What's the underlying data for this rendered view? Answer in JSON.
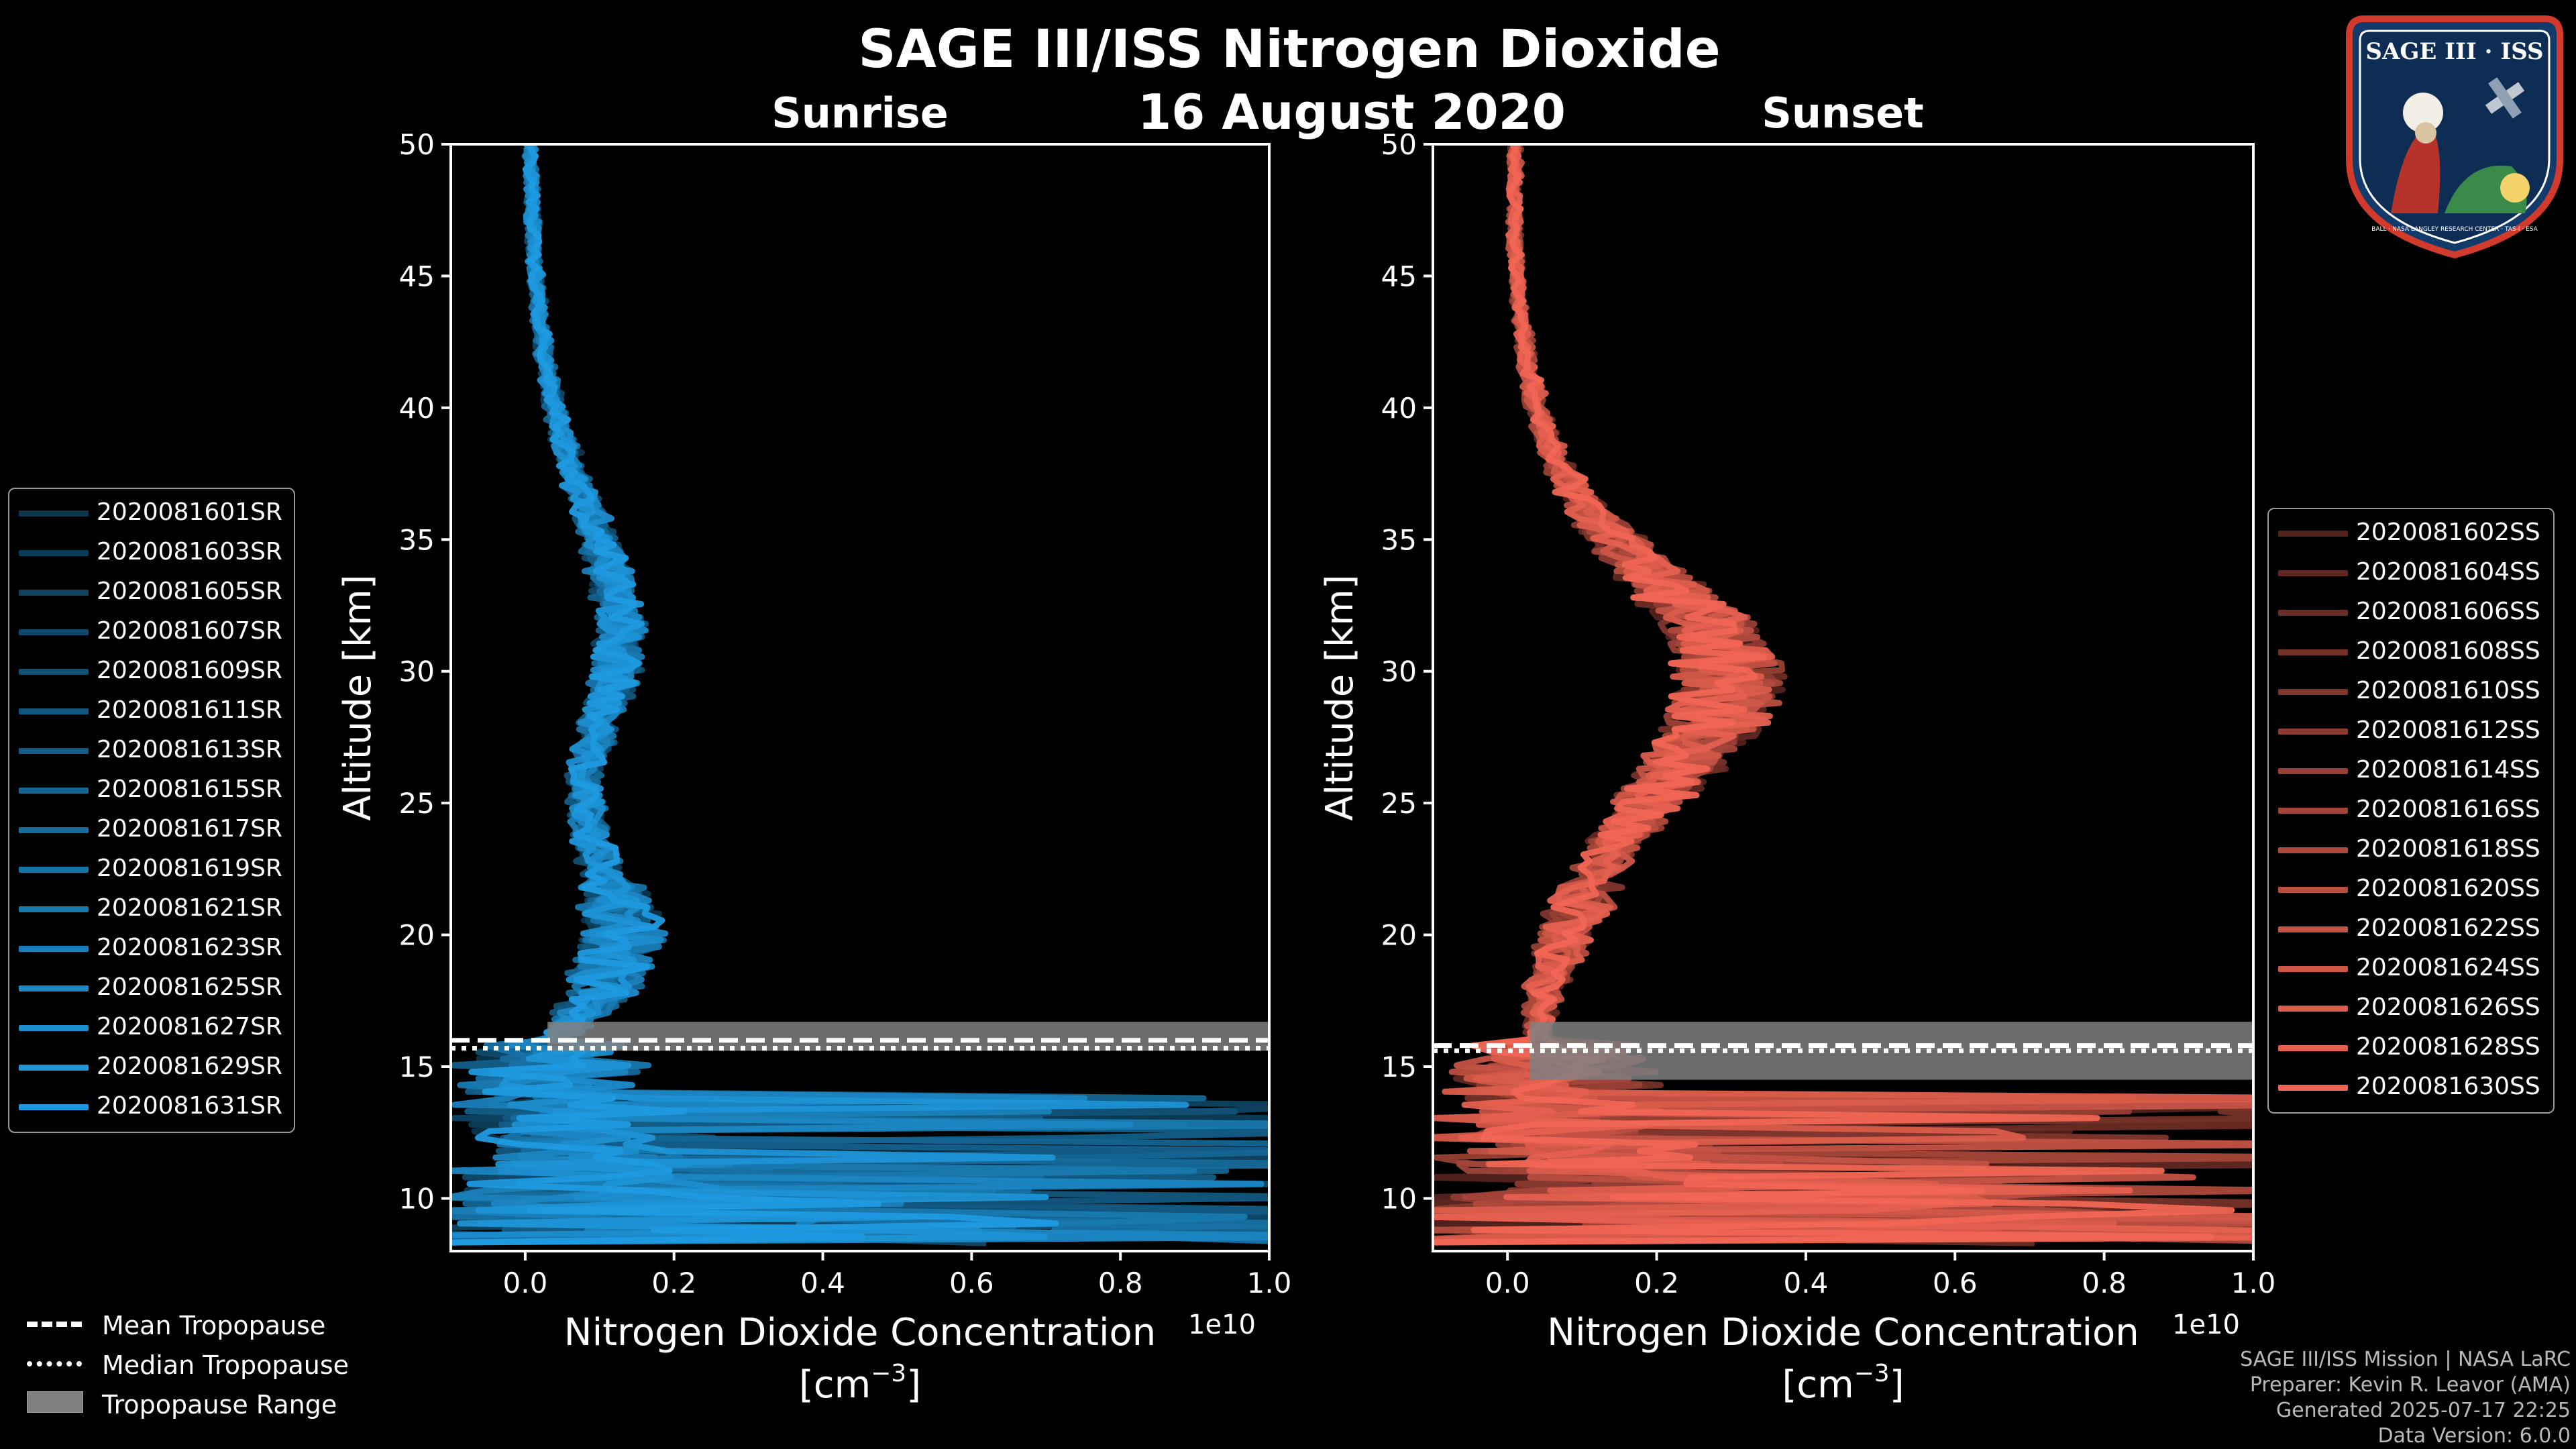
{
  "title": "SAGE III/ISS Nitrogen Dioxide",
  "date_label": "16 August 2020",
  "badge": {
    "top_text": "SAGE III · ISS",
    "bottom_text": "BALL · NASA LANGLEY RESEARCH CENTER · TAS-I · ESA",
    "icon": "mission-patch-icon"
  },
  "credits": [
    "SAGE III/ISS Mission | NASA LaRC",
    "Preparer: Kevin R. Leavor (AMA)",
    "Generated 2025-07-17 22:25",
    "Data Version: 6.0.0"
  ],
  "tropopause_legend": [
    {
      "label": "Mean Tropopause",
      "style": "dashed",
      "color": "#ffffff"
    },
    {
      "label": "Median Tropopause",
      "style": "dotted",
      "color": "#ffffff"
    },
    {
      "label": "Tropopause Range",
      "style": "fill",
      "color": "#808080"
    }
  ],
  "colors": {
    "sunrise_base": "#1f9ae0",
    "sunset_base": "#f06553",
    "background": "#000000",
    "axes": "#ffffff"
  },
  "chart_data": [
    {
      "type": "line",
      "title": "Sunrise",
      "xlabel": "Nitrogen Dioxide Concentration",
      "xlabel_unit": "[cm⁻³]",
      "xlabel_unit_base": "[cm",
      "xlabel_unit_exp": "−3",
      "xlabel_unit_end": "]",
      "ylabel": "Altitude [km]",
      "xlim": [
        -1000000000.0,
        10000000000.0
      ],
      "ylim": [
        8,
        50
      ],
      "x_offset_label": "1e10",
      "xticks": [
        0.0,
        0.2,
        0.4,
        0.6,
        0.8,
        1.0
      ],
      "xtick_labels": [
        "0.0",
        "0.2",
        "0.4",
        "0.6",
        "0.8",
        "1.0"
      ],
      "yticks": [
        10,
        15,
        20,
        25,
        30,
        35,
        40,
        45,
        50
      ],
      "ytick_labels": [
        "10",
        "15",
        "20",
        "25",
        "30",
        "35",
        "40",
        "45",
        "50"
      ],
      "legend_position": "left",
      "tropopause": {
        "mean_km": 16.0,
        "median_km": 15.7,
        "range_km": [
          15.6,
          16.7
        ]
      },
      "mean_profile": [
        {
          "alt": 8.5,
          "no2": 4000000000.0
        },
        {
          "alt": 10,
          "no2": 1500000000.0
        },
        {
          "alt": 12,
          "no2": 800000000.0
        },
        {
          "alt": 14,
          "no2": 500000000.0
        },
        {
          "alt": 16,
          "no2": 400000000.0
        },
        {
          "alt": 18,
          "no2": 1100000000.0
        },
        {
          "alt": 20,
          "no2": 1300000000.0
        },
        {
          "alt": 22,
          "no2": 1100000000.0
        },
        {
          "alt": 24,
          "no2": 850000000.0
        },
        {
          "alt": 26,
          "no2": 800000000.0
        },
        {
          "alt": 28,
          "no2": 1000000000.0
        },
        {
          "alt": 30,
          "no2": 1250000000.0
        },
        {
          "alt": 32,
          "no2": 1300000000.0
        },
        {
          "alt": 34,
          "no2": 1100000000.0
        },
        {
          "alt": 36,
          "no2": 850000000.0
        },
        {
          "alt": 38,
          "no2": 600000000.0
        },
        {
          "alt": 40,
          "no2": 400000000.0
        },
        {
          "alt": 42,
          "no2": 250000000.0
        },
        {
          "alt": 44,
          "no2": 180000000.0
        },
        {
          "alt": 46,
          "no2": 120000000.0
        },
        {
          "alt": 48,
          "no2": 100000000.0
        },
        {
          "alt": 50,
          "no2": 60000000.0
        }
      ],
      "series": [
        {
          "name": "2020081601SR"
        },
        {
          "name": "2020081603SR"
        },
        {
          "name": "2020081605SR"
        },
        {
          "name": "2020081607SR"
        },
        {
          "name": "2020081609SR"
        },
        {
          "name": "2020081611SR"
        },
        {
          "name": "2020081613SR"
        },
        {
          "name": "2020081615SR"
        },
        {
          "name": "2020081617SR"
        },
        {
          "name": "2020081619SR"
        },
        {
          "name": "2020081621SR"
        },
        {
          "name": "2020081623SR"
        },
        {
          "name": "2020081625SR"
        },
        {
          "name": "2020081627SR"
        },
        {
          "name": "2020081629SR"
        },
        {
          "name": "2020081631SR"
        }
      ]
    },
    {
      "type": "line",
      "title": "Sunset",
      "xlabel": "Nitrogen Dioxide Concentration",
      "xlabel_unit": "[cm⁻³]",
      "xlabel_unit_base": "[cm",
      "xlabel_unit_exp": "−3",
      "xlabel_unit_end": "]",
      "ylabel": "Altitude [km]",
      "xlim": [
        -1000000000.0,
        10000000000.0
      ],
      "ylim": [
        8,
        50
      ],
      "x_offset_label": "1e10",
      "xticks": [
        0.0,
        0.2,
        0.4,
        0.6,
        0.8,
        1.0
      ],
      "xtick_labels": [
        "0.0",
        "0.2",
        "0.4",
        "0.6",
        "0.8",
        "1.0"
      ],
      "yticks": [
        10,
        15,
        20,
        25,
        30,
        35,
        40,
        45,
        50
      ],
      "ytick_labels": [
        "10",
        "15",
        "20",
        "25",
        "30",
        "35",
        "40",
        "45",
        "50"
      ],
      "legend_position": "right",
      "tropopause": {
        "mean_km": 15.8,
        "median_km": 15.6,
        "range_km": [
          14.5,
          16.7
        ]
      },
      "mean_profile": [
        {
          "alt": 8.5,
          "no2": 5000000000.0
        },
        {
          "alt": 10,
          "no2": 3000000000.0
        },
        {
          "alt": 12,
          "no2": 1000000000.0
        },
        {
          "alt": 14,
          "no2": 600000000.0
        },
        {
          "alt": 16,
          "no2": 400000000.0
        },
        {
          "alt": 18,
          "no2": 500000000.0
        },
        {
          "alt": 20,
          "no2": 800000000.0
        },
        {
          "alt": 22,
          "no2": 1100000000.0
        },
        {
          "alt": 24,
          "no2": 1600000000.0
        },
        {
          "alt": 26,
          "no2": 2200000000.0
        },
        {
          "alt": 28,
          "no2": 2800000000.0
        },
        {
          "alt": 30,
          "no2": 3000000000.0
        },
        {
          "alt": 32,
          "no2": 2600000000.0
        },
        {
          "alt": 34,
          "no2": 1800000000.0
        },
        {
          "alt": 36,
          "no2": 1100000000.0
        },
        {
          "alt": 38,
          "no2": 650000000.0
        },
        {
          "alt": 40,
          "no2": 400000000.0
        },
        {
          "alt": 42,
          "no2": 250000000.0
        },
        {
          "alt": 44,
          "no2": 150000000.0
        },
        {
          "alt": 46,
          "no2": 100000000.0
        },
        {
          "alt": 48,
          "no2": 100000000.0
        },
        {
          "alt": 50,
          "no2": 100000000.0
        }
      ],
      "series": [
        {
          "name": "2020081602SS"
        },
        {
          "name": "2020081604SS"
        },
        {
          "name": "2020081606SS"
        },
        {
          "name": "2020081608SS"
        },
        {
          "name": "2020081610SS"
        },
        {
          "name": "2020081612SS"
        },
        {
          "name": "2020081614SS"
        },
        {
          "name": "2020081616SS"
        },
        {
          "name": "2020081618SS"
        },
        {
          "name": "2020081620SS"
        },
        {
          "name": "2020081622SS"
        },
        {
          "name": "2020081624SS"
        },
        {
          "name": "2020081626SS"
        },
        {
          "name": "2020081628SS"
        },
        {
          "name": "2020081630SS"
        }
      ]
    }
  ]
}
